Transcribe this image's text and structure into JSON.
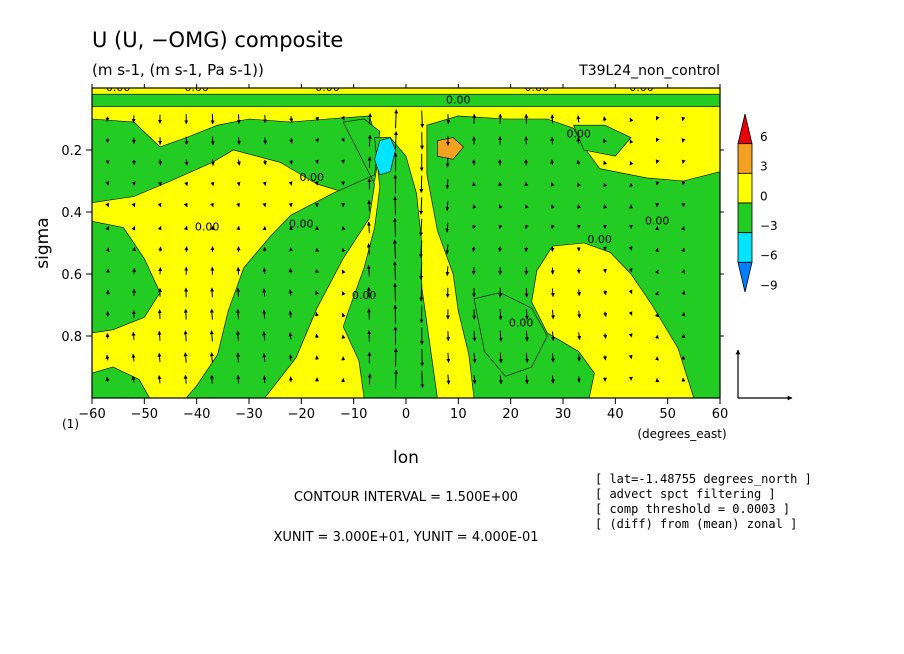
{
  "title": "U (U, −OMG) composite",
  "subtitle": "(m s-1, (m s-1, Pa s-1))",
  "run_label": "T39L24_non_control",
  "panel_label": "(1)",
  "contour_interval": "CONTOUR INTERVAL = 1.500E+00",
  "units_line": "XUNIT = 3.000E+01, YUNIT = 4.000E-01",
  "notes": [
    "[ lat=-1.48755 degrees_north ]",
    "[ advect spct filtering ]",
    "[ comp threshold = 0.0003 ]",
    "[ (diff) from (mean) zonal ]"
  ],
  "contour_label": "0.00",
  "colors": {
    "level_pos6": "#e8000b",
    "level_pos3": "#f4a020",
    "level_0": "#ffff00",
    "level_neg3": "#22cc22",
    "level_neg6": "#00e5ff",
    "level_neg9": "#0080ff"
  },
  "chart_data": {
    "type": "heatmap",
    "xlabel": "lon",
    "xunit": "(degrees_east)",
    "ylabel": "sigma",
    "xlim": [
      -60,
      60
    ],
    "ylim": [
      1.0,
      0.0
    ],
    "x_ticks": [
      -60,
      -50,
      -40,
      -30,
      -20,
      -10,
      0,
      10,
      20,
      30,
      40,
      50,
      60
    ],
    "x_tick_labels": [
      "−60",
      "−50",
      "−40",
      "−30",
      "−20",
      "−10",
      "0",
      "10",
      "20",
      "30",
      "40",
      "50",
      "60"
    ],
    "y_ticks": [
      0.2,
      0.4,
      0.6,
      0.8
    ],
    "y_tick_labels": [
      "0.2",
      "0.4",
      "0.6",
      "0.8"
    ],
    "colorbar_levels": [
      "6",
      "3",
      "0",
      "−3",
      "−6",
      "−9"
    ],
    "regions": [
      {
        "category": "0 to 3",
        "polygon": [
          [
            -60,
            0.0
          ],
          [
            60,
            0.0
          ],
          [
            60,
            1.0
          ],
          [
            -60,
            1.0
          ]
        ]
      },
      {
        "category": "-3 to 0",
        "polygon": [
          [
            -60,
            0.1
          ],
          [
            -52,
            0.11
          ],
          [
            -47,
            0.19
          ],
          [
            -42,
            0.16
          ],
          [
            -36,
            0.12
          ],
          [
            -30,
            0.1
          ],
          [
            -22,
            0.11
          ],
          [
            -15,
            0.1
          ],
          [
            -7,
            0.09
          ],
          [
            -5,
            0.2
          ],
          [
            -6,
            0.3
          ],
          [
            -11,
            0.34
          ],
          [
            -17,
            0.31
          ],
          [
            -24,
            0.24
          ],
          [
            -33,
            0.2
          ],
          [
            -37,
            0.24
          ],
          [
            -45,
            0.3
          ],
          [
            -52,
            0.35
          ],
          [
            -60,
            0.37
          ]
        ]
      },
      {
        "category": "-3 to 0",
        "polygon": [
          [
            -60,
            0.43
          ],
          [
            -54,
            0.45
          ],
          [
            -50,
            0.55
          ],
          [
            -47,
            0.66
          ],
          [
            -50,
            0.74
          ],
          [
            -56,
            0.78
          ],
          [
            -60,
            0.79
          ]
        ]
      },
      {
        "category": "-3 to 0",
        "polygon": [
          [
            -60,
            0.92
          ],
          [
            -56,
            0.9
          ],
          [
            -51,
            0.94
          ],
          [
            -49,
            1.0
          ],
          [
            -60,
            1.0
          ]
        ]
      },
      {
        "category": "-3 to 0",
        "polygon": [
          [
            -12,
            0.11
          ],
          [
            -8,
            0.1
          ],
          [
            -5,
            0.14
          ],
          [
            -6,
            0.28
          ],
          [
            -14,
            0.34
          ],
          [
            -22,
            0.41
          ],
          [
            -26,
            0.48
          ],
          [
            -31,
            0.58
          ],
          [
            -34,
            0.72
          ],
          [
            -36,
            0.86
          ],
          [
            -40,
            0.96
          ],
          [
            -42,
            1.0
          ],
          [
            -27,
            1.0
          ],
          [
            -21,
            0.87
          ],
          [
            -17,
            0.71
          ],
          [
            -12,
            0.55
          ],
          [
            -7,
            0.42
          ],
          [
            -6,
            0.31
          ]
        ]
      },
      {
        "category": "-3 to 0",
        "polygon": [
          [
            -6,
            0.16
          ],
          [
            -3,
            0.16
          ],
          [
            0,
            0.22
          ],
          [
            2,
            0.34
          ],
          [
            3,
            0.5
          ],
          [
            3,
            0.64
          ],
          [
            4,
            0.76
          ],
          [
            5,
            0.88
          ],
          [
            6,
            1.0
          ],
          [
            -8,
            1.0
          ],
          [
            -9,
            0.88
          ],
          [
            -12,
            0.77
          ],
          [
            -11,
            0.72
          ],
          [
            -8,
            0.58
          ],
          [
            -6,
            0.45
          ],
          [
            -5,
            0.32
          ]
        ]
      },
      {
        "category": "-3 to 0",
        "polygon": [
          [
            4,
            0.12
          ],
          [
            10,
            0.09
          ],
          [
            19,
            0.1
          ],
          [
            27,
            0.1
          ],
          [
            32,
            0.13
          ],
          [
            34,
            0.19
          ],
          [
            37,
            0.26
          ],
          [
            46,
            0.29
          ],
          [
            53,
            0.3
          ],
          [
            60,
            0.27
          ],
          [
            60,
            1.0
          ],
          [
            55,
            1.0
          ],
          [
            52,
            0.84
          ],
          [
            47,
            0.7
          ],
          [
            43,
            0.6
          ],
          [
            39,
            0.53
          ],
          [
            34,
            0.5
          ],
          [
            28,
            0.51
          ],
          [
            25,
            0.59
          ],
          [
            24,
            0.69
          ],
          [
            27,
            0.79
          ],
          [
            33,
            0.85
          ],
          [
            36,
            0.92
          ],
          [
            35,
            1.0
          ],
          [
            13,
            1.0
          ],
          [
            12,
            0.86
          ],
          [
            10,
            0.72
          ],
          [
            9,
            0.6
          ],
          [
            6,
            0.46
          ],
          [
            4,
            0.28
          ]
        ]
      },
      {
        "category": "-3 to 0",
        "polygon": [
          [
            13,
            0.68
          ],
          [
            18,
            0.66
          ],
          [
            24,
            0.71
          ],
          [
            27,
            0.8
          ],
          [
            24,
            0.9
          ],
          [
            19,
            0.93
          ],
          [
            15,
            0.85
          ]
        ]
      },
      {
        "category": "-3 to 0",
        "polygon": [
          [
            32,
            0.12
          ],
          [
            38,
            0.12
          ],
          [
            43,
            0.16
          ],
          [
            40,
            0.22
          ],
          [
            34,
            0.2
          ]
        ]
      },
      {
        "category": "-3 to 0",
        "polygon": [
          [
            -60,
            0.02
          ],
          [
            60,
            0.02
          ],
          [
            60,
            0.06
          ],
          [
            -60,
            0.06
          ]
        ]
      },
      {
        "category": "-6 to -3",
        "polygon": [
          [
            -5,
            0.17
          ],
          [
            -3,
            0.16
          ],
          [
            -2,
            0.2
          ],
          [
            -3,
            0.27
          ],
          [
            -5,
            0.28
          ],
          [
            -6,
            0.23
          ]
        ]
      },
      {
        "category": "3 to 6",
        "polygon": [
          [
            6,
            0.17
          ],
          [
            9,
            0.16
          ],
          [
            11,
            0.19
          ],
          [
            9,
            0.23
          ],
          [
            6,
            0.22
          ]
        ]
      }
    ],
    "vectors": [
      {
        "x": -2,
        "y": 0.65,
        "u": 0.0,
        "v": 0.4
      },
      {
        "x": 0,
        "y": 0.6,
        "u": 0.0,
        "v": 0.45
      },
      {
        "x": 2,
        "y": 0.5,
        "u": 0.0,
        "v": 0.4
      },
      {
        "x": 5,
        "y": 0.55,
        "u": 0.0,
        "v": -0.4
      },
      {
        "x": 8,
        "y": 0.55,
        "u": 0.0,
        "v": -0.35
      }
    ],
    "reference_vector": {
      "u": 30,
      "v": 0.4
    }
  }
}
